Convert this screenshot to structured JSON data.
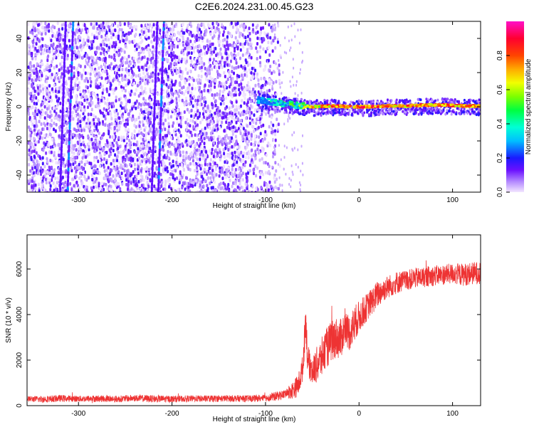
{
  "title": "C2E6.2024.231.00.45.G23",
  "colors": {
    "snr_line": "#ee3333",
    "scatter_low": "#7a16ff",
    "scatter_mid": "#00e5ff",
    "scatter_high": "#ff1a1a"
  },
  "chart_data": [
    {
      "type": "heatmap",
      "xlabel": "Height of straight line (km)",
      "ylabel": "Frequency (Hz)",
      "xlim": [
        -355,
        130
      ],
      "ylim": [
        -50,
        50
      ],
      "xticks": [
        -300,
        -200,
        -100,
        0,
        100
      ],
      "yticks": [
        -40,
        -20,
        0,
        20,
        40
      ],
      "colorbar": {
        "label": "Normalized spectral amplitude",
        "range": [
          0.0,
          1.0
        ],
        "ticks": [
          "0.0",
          "0.2",
          "0.4",
          "0.6",
          "0.8"
        ],
        "tick_values": [
          0.0,
          0.2,
          0.4,
          0.6,
          0.8
        ]
      },
      "noise_region_x": [
        -355,
        -85
      ],
      "signal_track": {
        "x": [
          -110,
          -90,
          -70,
          -50,
          -30,
          -10,
          10,
          30,
          50,
          70,
          90,
          110,
          130
        ],
        "y": [
          4,
          2.5,
          1,
          0,
          0.5,
          0,
          0,
          0.5,
          0.5,
          1,
          1,
          0.5,
          0.5
        ],
        "amplitude": [
          0.35,
          0.45,
          0.6,
          0.85,
          0.9,
          0.9,
          0.95,
          0.9,
          0.9,
          0.92,
          0.95,
          0.9,
          0.9
        ]
      },
      "vertical_streaks_x": [
        -320,
        -312,
        -222,
        -215
      ]
    },
    {
      "type": "line",
      "xlabel": "Height of straight line (km)",
      "ylabel": "SNR (10 * v/v)",
      "xlim": [
        -355,
        130
      ],
      "ylim": [
        0,
        7500
      ],
      "xticks": [
        -300,
        -200,
        -100,
        0,
        100
      ],
      "yticks": [
        0,
        2000,
        4000,
        6000
      ],
      "series": [
        {
          "x": [
            -355,
            -340,
            -320,
            -300,
            -280,
            -260,
            -240,
            -220,
            -200,
            -180,
            -160,
            -140,
            -120,
            -100,
            -90,
            -80,
            -70,
            -65,
            -60,
            -57,
            -55,
            -50,
            -45,
            -40,
            -35,
            -30,
            -25,
            -20,
            -15,
            -10,
            -5,
            0,
            10,
            20,
            30,
            40,
            50,
            60,
            70,
            80,
            90,
            100,
            110,
            120,
            130
          ],
          "y": [
            300,
            280,
            320,
            300,
            310,
            290,
            330,
            300,
            290,
            310,
            300,
            320,
            310,
            330,
            400,
            500,
            700,
            900,
            1700,
            3900,
            2000,
            1500,
            1800,
            2100,
            2500,
            2800,
            3000,
            2900,
            3400,
            3200,
            3600,
            3900,
            4400,
            4900,
            5200,
            5400,
            5500,
            5600,
            5650,
            5700,
            5750,
            5800,
            5750,
            5800,
            5850
          ],
          "noise_amplitude": [
            120,
            150,
            150,
            140,
            150,
            150,
            150,
            160,
            150,
            140,
            150,
            140,
            150,
            150,
            200,
            200,
            400,
            500,
            600,
            800,
            700,
            600,
            800,
            900,
            900,
            900,
            900,
            900,
            800,
            800,
            800,
            700,
            600,
            600,
            500,
            500,
            450,
            450,
            450,
            450,
            450,
            450,
            500,
            500,
            500
          ]
        }
      ]
    }
  ]
}
